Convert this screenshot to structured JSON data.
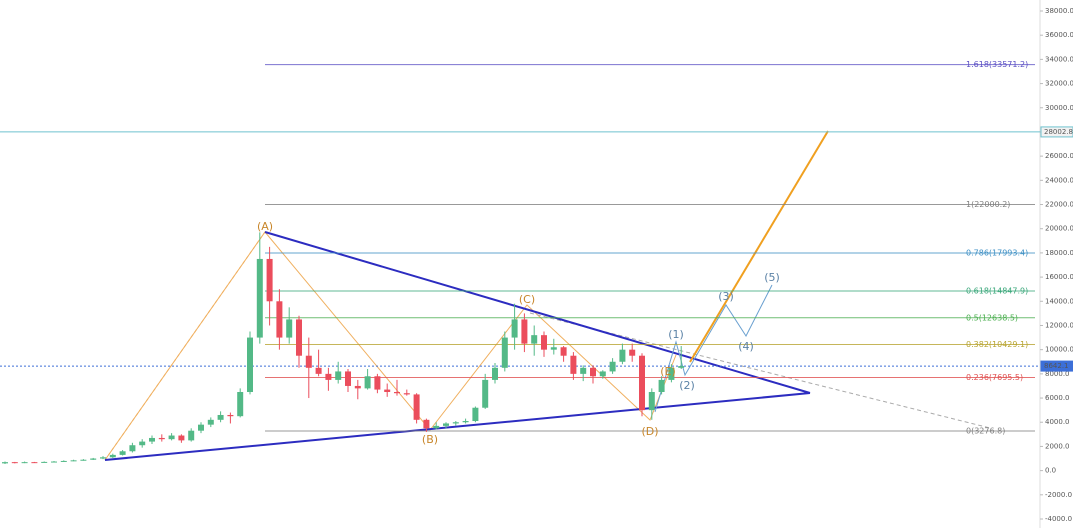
{
  "chart_data": {
    "type": "candlestick",
    "ylim": [
      -4000,
      38000
    ],
    "yticks": [
      {
        "value": 38000,
        "label": "38000.0"
      },
      {
        "value": 36000,
        "label": "36000.0"
      },
      {
        "value": 34000,
        "label": "34000.0"
      },
      {
        "value": 32000,
        "label": "32000.0"
      },
      {
        "value": 30000,
        "label": "30000.0"
      },
      {
        "value": 28000,
        "label": "28000.0"
      },
      {
        "value": 26000,
        "label": "26000.0"
      },
      {
        "value": 24000,
        "label": "24000.0"
      },
      {
        "value": 22000,
        "label": "22000.0"
      },
      {
        "value": 20000,
        "label": "20000.0"
      },
      {
        "value": 18000,
        "label": "18000.0"
      },
      {
        "value": 16000,
        "label": "16000.0"
      },
      {
        "value": 14000,
        "label": "14000.0"
      },
      {
        "value": 12000,
        "label": "12000.0"
      },
      {
        "value": 10000,
        "label": "10000.0"
      },
      {
        "value": 8000,
        "label": "8000.0"
      },
      {
        "value": 6000,
        "label": "6000.0"
      },
      {
        "value": 4000,
        "label": "4000.0"
      },
      {
        "value": 2000,
        "label": "2000.0"
      },
      {
        "value": 0,
        "label": "0.0"
      },
      {
        "value": -2000,
        "label": "-2000.0"
      },
      {
        "value": -4000,
        "label": "-4000.0"
      }
    ],
    "up_color": "#53b987",
    "down_color": "#eb4d5c",
    "open": [
      600,
      700,
      650,
      700,
      680,
      720,
      750,
      800,
      850,
      900,
      1000,
      1100,
      1300,
      1600,
      2100,
      2400,
      2700,
      2600,
      2900,
      2500,
      3300,
      3800,
      4200,
      4600,
      4500,
      6500,
      11000,
      17500,
      14000,
      11000,
      12500,
      9500,
      8500,
      8000,
      7500,
      8200,
      7000,
      6800,
      7800,
      6700,
      6500,
      6400,
      6300,
      4200,
      3500,
      3700,
      3900,
      4000,
      4100,
      5200,
      7500,
      8500,
      11000,
      12500,
      10500,
      11200,
      10000,
      10200,
      9500,
      8000,
      8500,
      7800,
      8200,
      9000,
      10000,
      9500,
      5000,
      6500,
      7500,
      8500
    ],
    "high": [
      750,
      720,
      750,
      720,
      760,
      800,
      850,
      900,
      950,
      1050,
      1200,
      1400,
      1700,
      2300,
      2600,
      2900,
      3000,
      3100,
      3000,
      3500,
      4000,
      4400,
      4900,
      4800,
      6800,
      11500,
      19700,
      18500,
      15000,
      13500,
      12800,
      11000,
      10000,
      8500,
      9000,
      8400,
      7500,
      8400,
      8000,
      7200,
      7500,
      6700,
      6400,
      4300,
      4000,
      4000,
      4100,
      4300,
      5300,
      8000,
      8900,
      11500,
      13800,
      13000,
      12000,
      11500,
      10900,
      10300,
      9800,
      8700,
      8700,
      8300,
      9300,
      10500,
      10500,
      9700,
      6800,
      7800,
      8800,
      10300
    ],
    "low": [
      550,
      600,
      620,
      650,
      660,
      700,
      720,
      780,
      820,
      880,
      950,
      1050,
      1250,
      1500,
      1900,
      2200,
      2400,
      2500,
      2300,
      2400,
      3100,
      3600,
      4000,
      3900,
      4400,
      6300,
      10500,
      12000,
      10000,
      10500,
      8500,
      6000,
      7800,
      6600,
      7200,
      6500,
      5900,
      6700,
      6400,
      6100,
      6200,
      6200,
      3900,
      3200,
      3400,
      3500,
      3700,
      3900,
      4000,
      5100,
      7200,
      8200,
      10000,
      9800,
      9500,
      9400,
      9600,
      9000,
      7500,
      7400,
      7200,
      7600,
      8000,
      8800,
      9000,
      4500,
      4200,
      6300,
      7300,
      8400
    ],
    "close": [
      700,
      650,
      700,
      680,
      720,
      750,
      800,
      850,
      900,
      1000,
      1100,
      1300,
      1600,
      2100,
      2400,
      2700,
      2600,
      2900,
      2500,
      3300,
      3800,
      4200,
      4600,
      4500,
      6500,
      11000,
      17500,
      14000,
      11000,
      12500,
      9500,
      8500,
      8000,
      7500,
      8200,
      7000,
      6800,
      7800,
      6700,
      6500,
      6400,
      6300,
      4200,
      3500,
      3700,
      3900,
      4000,
      4100,
      5200,
      7500,
      8500,
      11000,
      12500,
      10500,
      11200,
      10000,
      10200,
      9500,
      8000,
      8500,
      7800,
      8200,
      9000,
      10000,
      9500,
      5000,
      6500,
      7500,
      8500,
      8642.1
    ],
    "fib_levels": [
      {
        "value": 33571.2,
        "label": "1.618(33571.2)",
        "color": "#5b4fc4"
      },
      {
        "value": 22000.2,
        "label": "1(22000.2)",
        "color": "#808080"
      },
      {
        "value": 17993.4,
        "label": "0.786(17993.4)",
        "color": "#3d8fc4"
      },
      {
        "value": 14847.9,
        "label": "0.618(14847.9)",
        "color": "#3aa77a"
      },
      {
        "value": 12638.5,
        "label": "0.5(12638.5)",
        "color": "#4caf50"
      },
      {
        "value": 10429.1,
        "label": "0.382(10429.1)",
        "color": "#b8a531"
      },
      {
        "value": 7695.5,
        "label": "0.236(7695.5)",
        "color": "#e05050"
      },
      {
        "value": 3276.8,
        "label": "0(3276.8)",
        "color": "#808080"
      }
    ],
    "price_lines": [
      {
        "value": 28002.8,
        "label": "28002.8",
        "color": "#6fc2cf"
      },
      {
        "value": 8642.1,
        "label": "8642.1",
        "color": "#3c6fd8"
      }
    ],
    "wave_labels": [
      "(A)",
      "(B)",
      "(C)",
      "(D)",
      "(E)",
      "(1)",
      "(2)",
      "(3)",
      "(4)",
      "(5)"
    ]
  }
}
